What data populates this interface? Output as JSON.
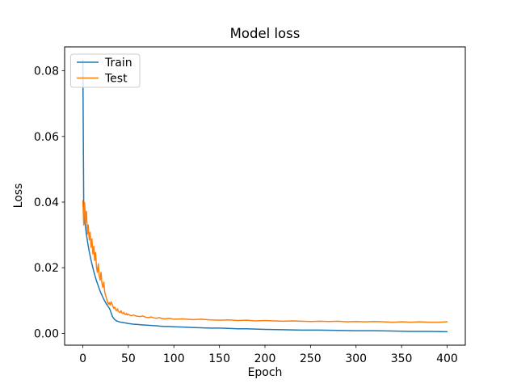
{
  "chart_data": {
    "type": "line",
    "title": "Model loss",
    "xlabel": "Epoch",
    "ylabel": "Loss",
    "xlim": [
      -20,
      420
    ],
    "ylim": [
      -0.0036,
      0.0873
    ],
    "x_ticks": [
      0,
      50,
      100,
      150,
      200,
      250,
      300,
      350,
      400
    ],
    "x_tick_labels": [
      "0",
      "50",
      "100",
      "150",
      "200",
      "250",
      "300",
      "350",
      "400"
    ],
    "y_ticks": [
      0.0,
      0.02,
      0.04,
      0.06,
      0.08
    ],
    "y_tick_labels": [
      "0.00",
      "0.02",
      "0.04",
      "0.06",
      "0.08"
    ],
    "grid": false,
    "background_color": "#ffffff",
    "spine_color": "#000000",
    "legend": {
      "position": "upper-left",
      "border_color": "#cccccc",
      "background_color": "rgba(255,255,255,0.8)",
      "entries": [
        "Train",
        "Test"
      ]
    },
    "series": [
      {
        "name": "Train",
        "color": "#1f77b4",
        "points": [
          [
            0,
            0.0832
          ],
          [
            1,
            0.038
          ],
          [
            2,
            0.0348
          ],
          [
            3,
            0.0322
          ],
          [
            4,
            0.03
          ],
          [
            5,
            0.0282
          ],
          [
            6,
            0.0265
          ],
          [
            7,
            0.025
          ],
          [
            8,
            0.0236
          ],
          [
            9,
            0.0223
          ],
          [
            10,
            0.0211
          ],
          [
            11,
            0.02
          ],
          [
            12,
            0.0189
          ],
          [
            13,
            0.0179
          ],
          [
            14,
            0.0169
          ],
          [
            15,
            0.016
          ],
          [
            16,
            0.0152
          ],
          [
            17,
            0.0144
          ],
          [
            18,
            0.0136
          ],
          [
            19,
            0.0129
          ],
          [
            20,
            0.0122
          ],
          [
            21,
            0.0116
          ],
          [
            22,
            0.011
          ],
          [
            23,
            0.0104
          ],
          [
            24,
            0.0099
          ],
          [
            25,
            0.0094
          ],
          [
            26,
            0.0089
          ],
          [
            27,
            0.0085
          ],
          [
            28,
            0.0081
          ],
          [
            29,
            0.0077
          ],
          [
            30,
            0.0071
          ],
          [
            31,
            0.0063
          ],
          [
            32,
            0.0055
          ],
          [
            33,
            0.0049
          ],
          [
            34,
            0.0045
          ],
          [
            35,
            0.0042
          ],
          [
            36,
            0.004
          ],
          [
            37,
            0.0038
          ],
          [
            38,
            0.0037
          ],
          [
            39,
            0.0036
          ],
          [
            40,
            0.0035
          ],
          [
            42,
            0.0034
          ],
          [
            44,
            0.0033
          ],
          [
            46,
            0.0032
          ],
          [
            48,
            0.0031
          ],
          [
            50,
            0.003
          ],
          [
            55,
            0.0028
          ],
          [
            60,
            0.0027
          ],
          [
            65,
            0.0026
          ],
          [
            70,
            0.0025
          ],
          [
            75,
            0.0024
          ],
          [
            80,
            0.0023
          ],
          [
            85,
            0.0022
          ],
          [
            90,
            0.0021
          ],
          [
            95,
            0.0021
          ],
          [
            100,
            0.002
          ],
          [
            110,
            0.0019
          ],
          [
            120,
            0.0018
          ],
          [
            130,
            0.0017
          ],
          [
            140,
            0.0016
          ],
          [
            150,
            0.0016
          ],
          [
            160,
            0.0015
          ],
          [
            170,
            0.0014
          ],
          [
            180,
            0.0014
          ],
          [
            190,
            0.0013
          ],
          [
            200,
            0.0012
          ],
          [
            220,
            0.0011
          ],
          [
            240,
            0.001
          ],
          [
            260,
            0.001
          ],
          [
            280,
            0.0009
          ],
          [
            300,
            0.0008
          ],
          [
            320,
            0.0008
          ],
          [
            340,
            0.0007
          ],
          [
            360,
            0.0006
          ],
          [
            380,
            0.0006
          ],
          [
            400,
            0.0005
          ]
        ]
      },
      {
        "name": "Test",
        "color": "#ff7f0e",
        "points": [
          [
            0,
            0.0405
          ],
          [
            1,
            0.033
          ],
          [
            2,
            0.0398
          ],
          [
            3,
            0.0338
          ],
          [
            4,
            0.0372
          ],
          [
            5,
            0.0302
          ],
          [
            6,
            0.033
          ],
          [
            7,
            0.0285
          ],
          [
            8,
            0.0308
          ],
          [
            9,
            0.0262
          ],
          [
            10,
            0.0288
          ],
          [
            11,
            0.0242
          ],
          [
            12,
            0.0265
          ],
          [
            13,
            0.0222
          ],
          [
            14,
            0.0246
          ],
          [
            15,
            0.0202
          ],
          [
            16,
            0.0186
          ],
          [
            17,
            0.0212
          ],
          [
            18,
            0.0176
          ],
          [
            19,
            0.0162
          ],
          [
            20,
            0.0186
          ],
          [
            21,
            0.0152
          ],
          [
            22,
            0.014
          ],
          [
            23,
            0.0156
          ],
          [
            24,
            0.0126
          ],
          [
            25,
            0.0116
          ],
          [
            26,
            0.0106
          ],
          [
            27,
            0.0096
          ],
          [
            28,
            0.0089
          ],
          [
            29,
            0.0094
          ],
          [
            30,
            0.0086
          ],
          [
            31,
            0.0096
          ],
          [
            32,
            0.009
          ],
          [
            33,
            0.0082
          ],
          [
            34,
            0.0076
          ],
          [
            35,
            0.008
          ],
          [
            36,
            0.0072
          ],
          [
            37,
            0.0069
          ],
          [
            38,
            0.0075
          ],
          [
            39,
            0.0067
          ],
          [
            40,
            0.0065
          ],
          [
            41,
            0.0063
          ],
          [
            42,
            0.0069
          ],
          [
            43,
            0.0062
          ],
          [
            44,
            0.006
          ],
          [
            45,
            0.0064
          ],
          [
            46,
            0.0059
          ],
          [
            47,
            0.0057
          ],
          [
            48,
            0.0061
          ],
          [
            49,
            0.0056
          ],
          [
            50,
            0.0058
          ],
          [
            52,
            0.0055
          ],
          [
            54,
            0.0054
          ],
          [
            56,
            0.0056
          ],
          [
            58,
            0.0053
          ],
          [
            60,
            0.0052
          ],
          [
            63,
            0.0051
          ],
          [
            66,
            0.0053
          ],
          [
            69,
            0.0049
          ],
          [
            72,
            0.0048
          ],
          [
            75,
            0.005
          ],
          [
            78,
            0.0047
          ],
          [
            81,
            0.0046
          ],
          [
            84,
            0.0048
          ],
          [
            87,
            0.0045
          ],
          [
            90,
            0.0044
          ],
          [
            95,
            0.0046
          ],
          [
            100,
            0.0043
          ],
          [
            110,
            0.0044
          ],
          [
            120,
            0.0042
          ],
          [
            130,
            0.0043
          ],
          [
            140,
            0.0041
          ],
          [
            150,
            0.004
          ],
          [
            160,
            0.0041
          ],
          [
            170,
            0.0039
          ],
          [
            180,
            0.004
          ],
          [
            190,
            0.0038
          ],
          [
            200,
            0.0039
          ],
          [
            210,
            0.0038
          ],
          [
            220,
            0.0037
          ],
          [
            230,
            0.0038
          ],
          [
            240,
            0.0037
          ],
          [
            250,
            0.0036
          ],
          [
            260,
            0.0037
          ],
          [
            270,
            0.0036
          ],
          [
            280,
            0.0037
          ],
          [
            290,
            0.0035
          ],
          [
            300,
            0.0036
          ],
          [
            310,
            0.0035
          ],
          [
            320,
            0.0036
          ],
          [
            330,
            0.0035
          ],
          [
            340,
            0.0034
          ],
          [
            350,
            0.0035
          ],
          [
            360,
            0.0034
          ],
          [
            370,
            0.0035
          ],
          [
            380,
            0.0034
          ],
          [
            390,
            0.0034
          ],
          [
            400,
            0.0035
          ]
        ]
      }
    ]
  }
}
